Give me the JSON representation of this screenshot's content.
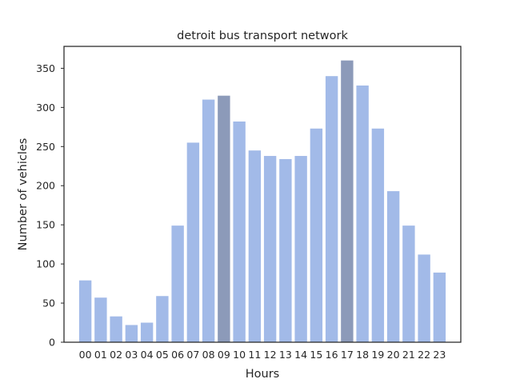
{
  "chart_data": {
    "type": "bar",
    "title": "detroit bus transport network",
    "xlabel": "Hours",
    "ylabel": "Number of vehicles",
    "categories": [
      "00",
      "01",
      "02",
      "03",
      "04",
      "05",
      "06",
      "07",
      "08",
      "09",
      "10",
      "11",
      "12",
      "13",
      "14",
      "15",
      "16",
      "17",
      "18",
      "19",
      "20",
      "21",
      "22",
      "23"
    ],
    "values": [
      79,
      57,
      33,
      22,
      25,
      59,
      149,
      255,
      310,
      315,
      282,
      245,
      238,
      234,
      238,
      273,
      340,
      360,
      328,
      273,
      193,
      149,
      112,
      89
    ],
    "highlighted_categories": [
      "09",
      "17"
    ],
    "ylim": [
      0,
      378
    ],
    "yticks": [
      0,
      50,
      100,
      150,
      200,
      250,
      300,
      350
    ],
    "grid": false,
    "colors": {
      "bar": "#a2bae8",
      "highlight": "#8c9ab9",
      "axis": "#262626"
    }
  }
}
